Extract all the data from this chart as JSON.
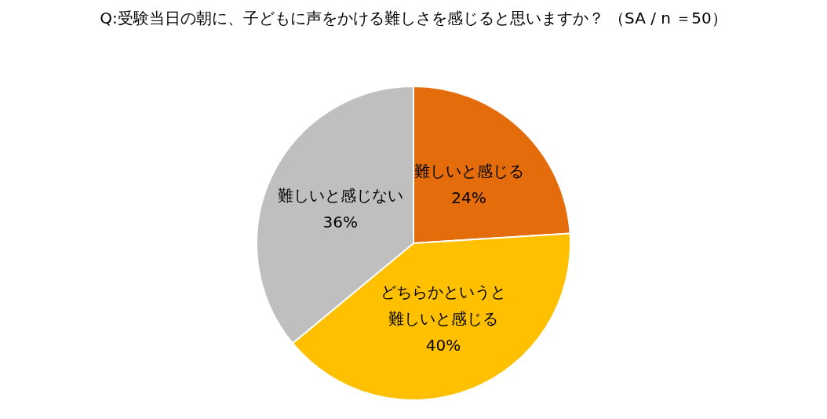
{
  "chart_data": {
    "type": "pie",
    "title": "Q:受験当日の朝に、子どもに声をかける難しさを感じると思いますか？ （SA / n ＝50）",
    "categories": [
      "難しいと感じる",
      "どちらかというと難しいと感じる",
      "難しいと感じない"
    ],
    "values": [
      24,
      40,
      36
    ],
    "value_labels": [
      "24%",
      "40%",
      "36%"
    ],
    "colors": [
      "#e46c0a",
      "#ffc000",
      "#bfbfbf"
    ],
    "legend": false
  }
}
